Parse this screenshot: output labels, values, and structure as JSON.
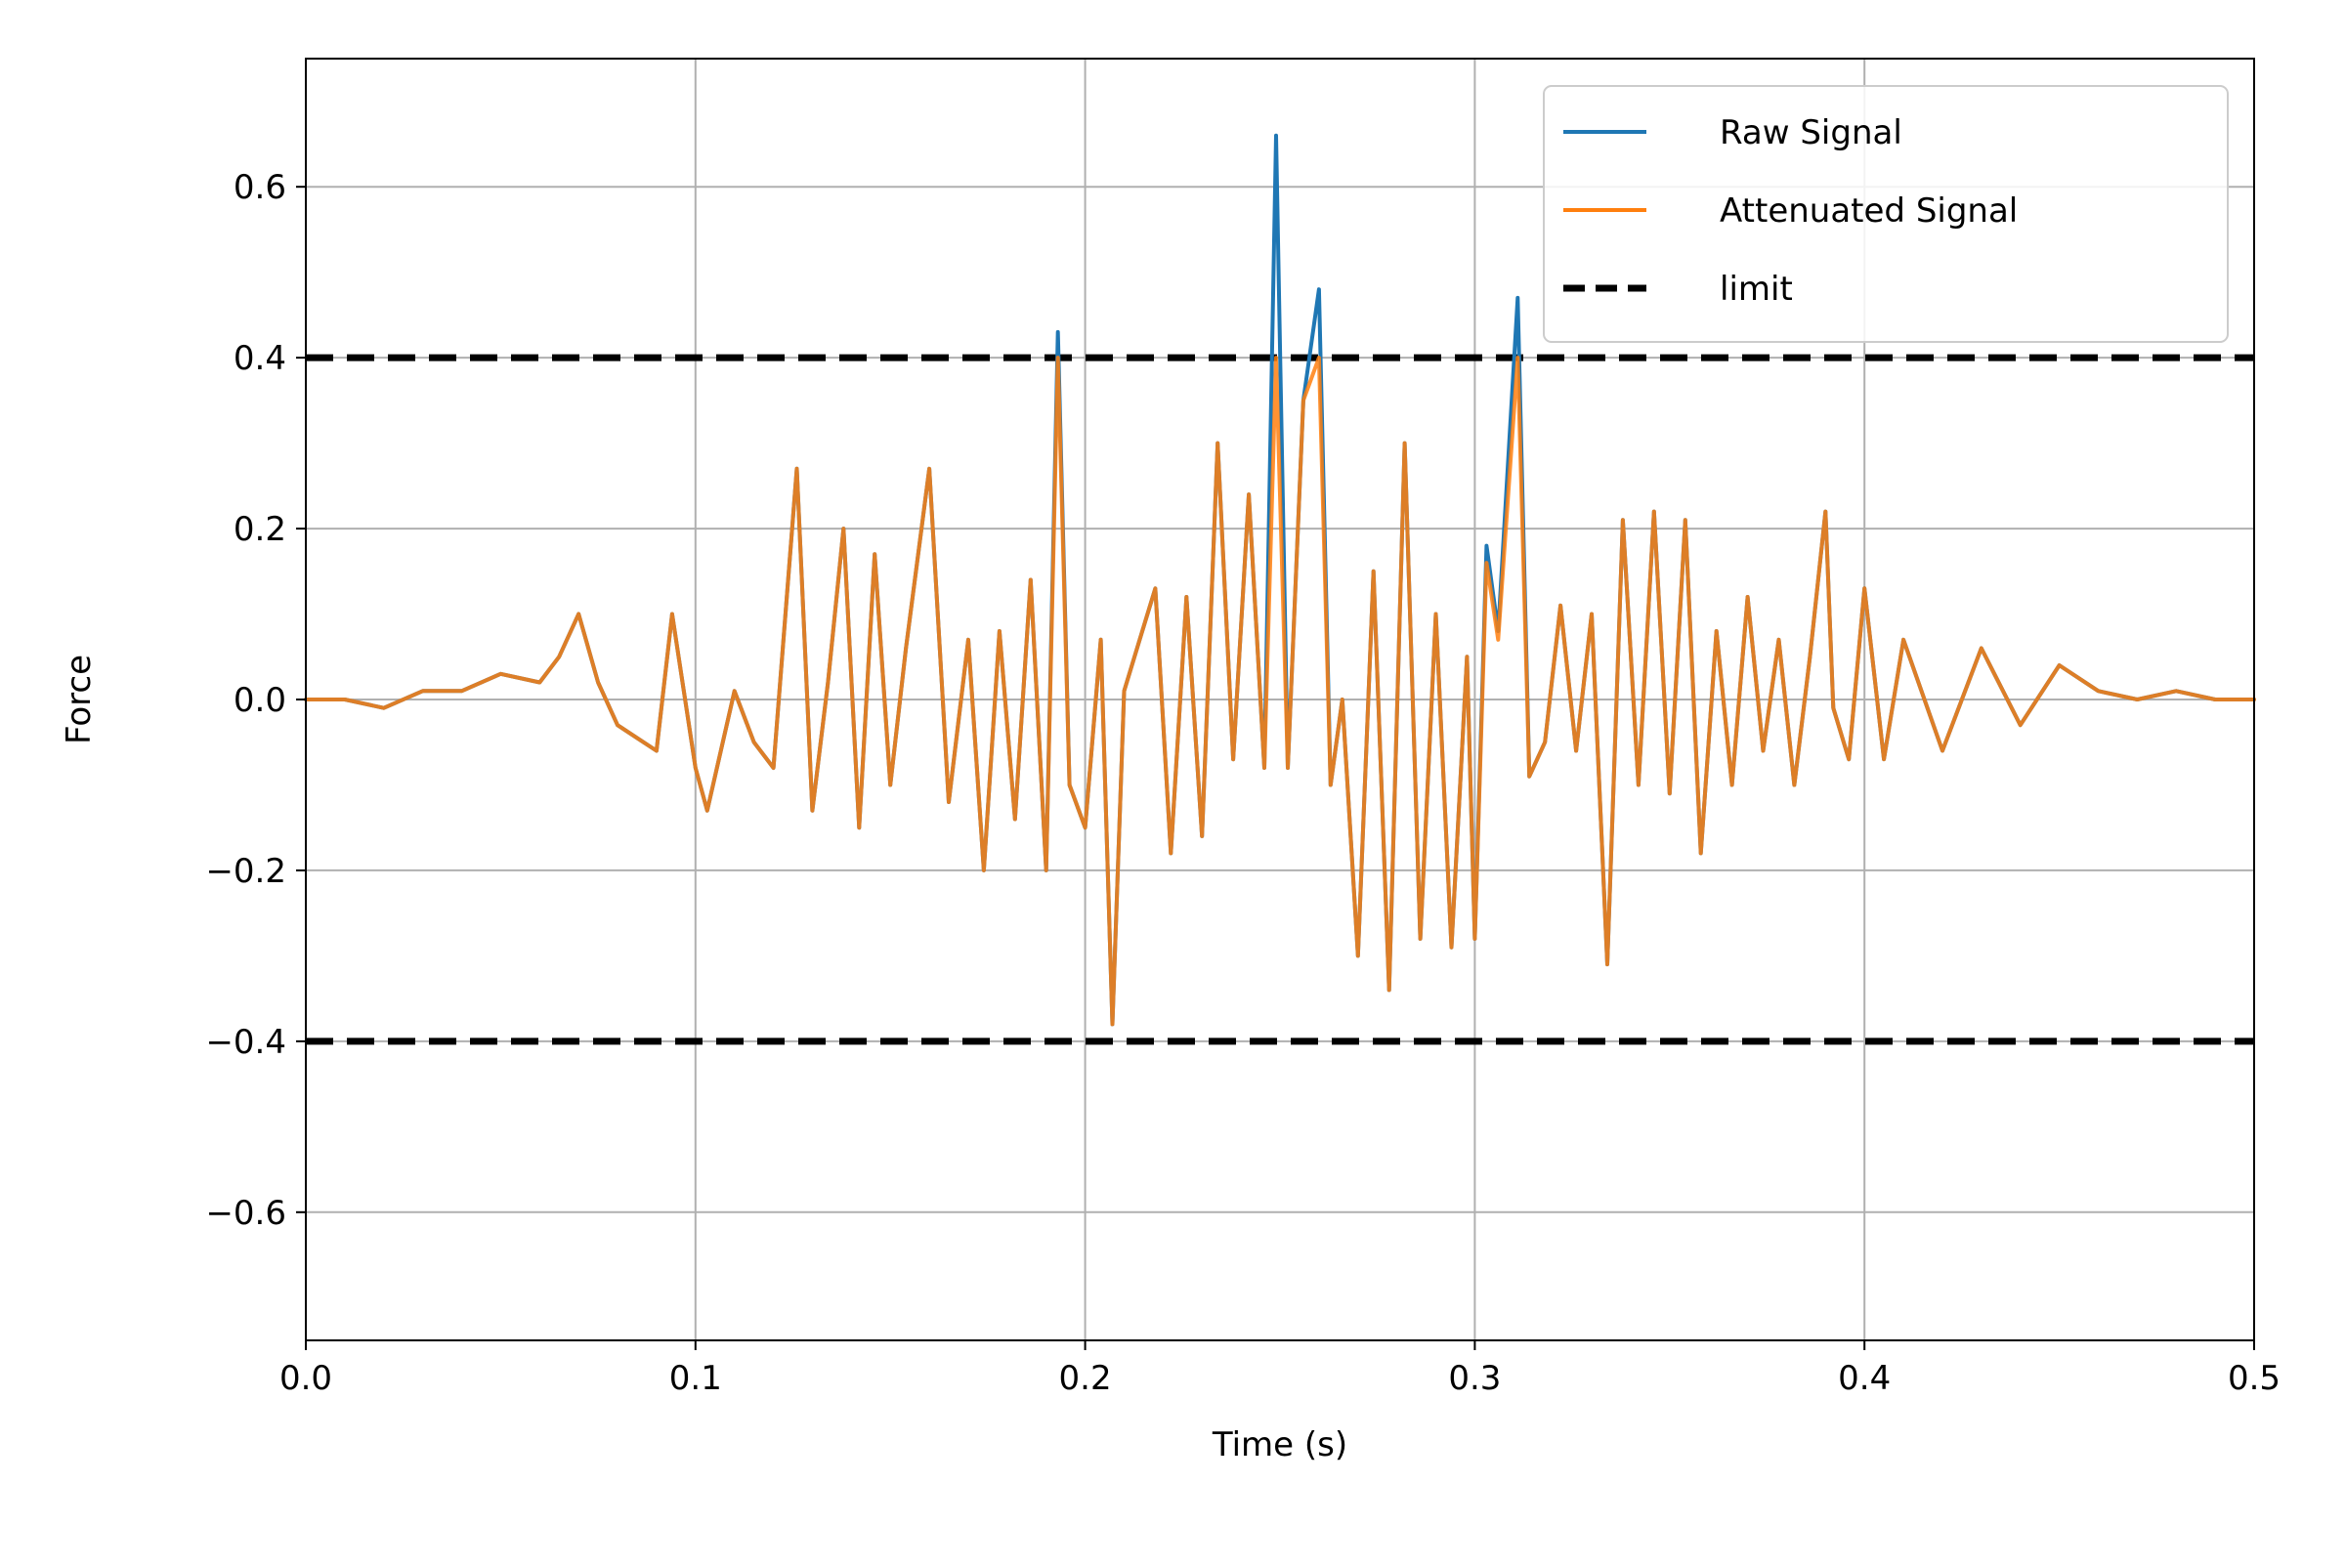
{
  "chart_data": {
    "type": "line",
    "xlabel": "Time (s)",
    "ylabel": "Force",
    "xlim": [
      0.0,
      0.5
    ],
    "ylim": [
      -0.75,
      0.75
    ],
    "xticks": [
      0.0,
      0.1,
      0.2,
      0.3,
      0.4,
      0.5
    ],
    "xtick_labels": [
      "0.0",
      "0.1",
      "0.2",
      "0.3",
      "0.4",
      "0.5"
    ],
    "yticks": [
      -0.6,
      -0.4,
      -0.2,
      0.0,
      0.2,
      0.4,
      0.6
    ],
    "ytick_labels": [
      "−0.6",
      "−0.4",
      "−0.2",
      "0.0",
      "0.2",
      "0.4",
      "0.6"
    ],
    "grid": true,
    "legend_position": "top-right",
    "limits": [
      0.4,
      -0.4
    ],
    "series": [
      {
        "name": "Raw Signal",
        "color": "#1f77b4",
        "x": [
          0.0,
          0.01,
          0.02,
          0.03,
          0.04,
          0.05,
          0.06,
          0.065,
          0.07,
          0.075,
          0.08,
          0.09,
          0.094,
          0.1,
          0.103,
          0.11,
          0.115,
          0.12,
          0.126,
          0.13,
          0.134,
          0.138,
          0.142,
          0.146,
          0.15,
          0.154,
          0.16,
          0.165,
          0.17,
          0.174,
          0.178,
          0.182,
          0.186,
          0.19,
          0.193,
          0.196,
          0.2,
          0.204,
          0.207,
          0.21,
          0.214,
          0.218,
          0.222,
          0.226,
          0.23,
          0.234,
          0.238,
          0.242,
          0.246,
          0.249,
          0.252,
          0.256,
          0.26,
          0.263,
          0.266,
          0.27,
          0.274,
          0.278,
          0.282,
          0.286,
          0.29,
          0.294,
          0.298,
          0.3,
          0.303,
          0.306,
          0.311,
          0.314,
          0.318,
          0.322,
          0.326,
          0.33,
          0.334,
          0.338,
          0.342,
          0.346,
          0.35,
          0.354,
          0.358,
          0.362,
          0.366,
          0.37,
          0.374,
          0.378,
          0.382,
          0.386,
          0.39,
          0.392,
          0.396,
          0.4,
          0.405,
          0.41,
          0.42,
          0.43,
          0.44,
          0.45,
          0.46,
          0.47,
          0.48,
          0.49,
          0.5
        ],
        "y": [
          0.0,
          0.0,
          -0.01,
          0.01,
          0.01,
          0.03,
          0.02,
          0.05,
          0.1,
          0.02,
          -0.03,
          -0.06,
          0.1,
          -0.08,
          -0.13,
          0.01,
          -0.05,
          -0.08,
          0.27,
          -0.13,
          0.02,
          0.2,
          -0.15,
          0.17,
          -0.1,
          0.06,
          0.27,
          -0.12,
          0.07,
          -0.2,
          0.08,
          -0.14,
          0.14,
          -0.2,
          0.43,
          -0.1,
          -0.15,
          0.07,
          -0.38,
          0.01,
          0.07,
          0.13,
          -0.18,
          0.12,
          -0.16,
          0.3,
          -0.07,
          0.24,
          -0.08,
          0.66,
          -0.08,
          0.35,
          0.48,
          -0.1,
          0.0,
          -0.3,
          0.15,
          -0.34,
          0.3,
          -0.28,
          0.1,
          -0.29,
          0.05,
          -0.28,
          0.18,
          0.08,
          0.47,
          -0.09,
          -0.05,
          0.11,
          -0.06,
          0.1,
          -0.31,
          0.21,
          -0.1,
          0.22,
          -0.11,
          0.21,
          -0.18,
          0.08,
          -0.1,
          0.12,
          -0.06,
          0.07,
          -0.1,
          0.05,
          0.22,
          -0.01,
          -0.07,
          0.13,
          -0.07,
          0.07,
          -0.06,
          0.06,
          -0.03,
          0.04,
          0.01,
          0.0,
          0.01,
          0.0,
          0.0
        ]
      },
      {
        "name": "Attenuated Signal",
        "color": "#ff7f0e",
        "x": [
          0.0,
          0.01,
          0.02,
          0.03,
          0.04,
          0.05,
          0.06,
          0.065,
          0.07,
          0.075,
          0.08,
          0.09,
          0.094,
          0.1,
          0.103,
          0.11,
          0.115,
          0.12,
          0.126,
          0.13,
          0.134,
          0.138,
          0.142,
          0.146,
          0.15,
          0.154,
          0.16,
          0.165,
          0.17,
          0.174,
          0.178,
          0.182,
          0.186,
          0.19,
          0.193,
          0.196,
          0.2,
          0.204,
          0.207,
          0.21,
          0.214,
          0.218,
          0.222,
          0.226,
          0.23,
          0.234,
          0.238,
          0.242,
          0.246,
          0.249,
          0.252,
          0.256,
          0.26,
          0.263,
          0.266,
          0.27,
          0.274,
          0.278,
          0.282,
          0.286,
          0.29,
          0.294,
          0.298,
          0.3,
          0.303,
          0.306,
          0.311,
          0.314,
          0.318,
          0.322,
          0.326,
          0.33,
          0.334,
          0.338,
          0.342,
          0.346,
          0.35,
          0.354,
          0.358,
          0.362,
          0.366,
          0.37,
          0.374,
          0.378,
          0.382,
          0.386,
          0.39,
          0.392,
          0.396,
          0.4,
          0.405,
          0.41,
          0.42,
          0.43,
          0.44,
          0.45,
          0.46,
          0.47,
          0.48,
          0.49,
          0.5
        ],
        "y": [
          0.0,
          0.0,
          -0.01,
          0.01,
          0.01,
          0.03,
          0.02,
          0.05,
          0.1,
          0.02,
          -0.03,
          -0.06,
          0.1,
          -0.08,
          -0.13,
          0.01,
          -0.05,
          -0.08,
          0.27,
          -0.13,
          0.02,
          0.2,
          -0.15,
          0.17,
          -0.1,
          0.06,
          0.27,
          -0.12,
          0.07,
          -0.2,
          0.08,
          -0.14,
          0.14,
          -0.2,
          0.4,
          -0.1,
          -0.15,
          0.07,
          -0.38,
          0.01,
          0.07,
          0.13,
          -0.18,
          0.12,
          -0.16,
          0.3,
          -0.07,
          0.24,
          -0.08,
          0.4,
          -0.08,
          0.35,
          0.4,
          -0.1,
          0.0,
          -0.3,
          0.15,
          -0.34,
          0.3,
          -0.28,
          0.1,
          -0.29,
          0.05,
          -0.28,
          0.16,
          0.07,
          0.4,
          -0.09,
          -0.05,
          0.11,
          -0.06,
          0.1,
          -0.31,
          0.21,
          -0.1,
          0.22,
          -0.11,
          0.21,
          -0.18,
          0.08,
          -0.1,
          0.12,
          -0.06,
          0.07,
          -0.1,
          0.05,
          0.22,
          -0.01,
          -0.07,
          0.13,
          -0.07,
          0.07,
          -0.06,
          0.06,
          -0.03,
          0.04,
          0.01,
          0.0,
          0.01,
          0.0,
          0.0
        ]
      }
    ],
    "limit_line": {
      "name": "limit",
      "color": "#000000",
      "style": "dashed"
    },
    "colors": {
      "grid": "#b0b0b0",
      "axes": "#000000",
      "legend_border": "#cccccc"
    }
  }
}
